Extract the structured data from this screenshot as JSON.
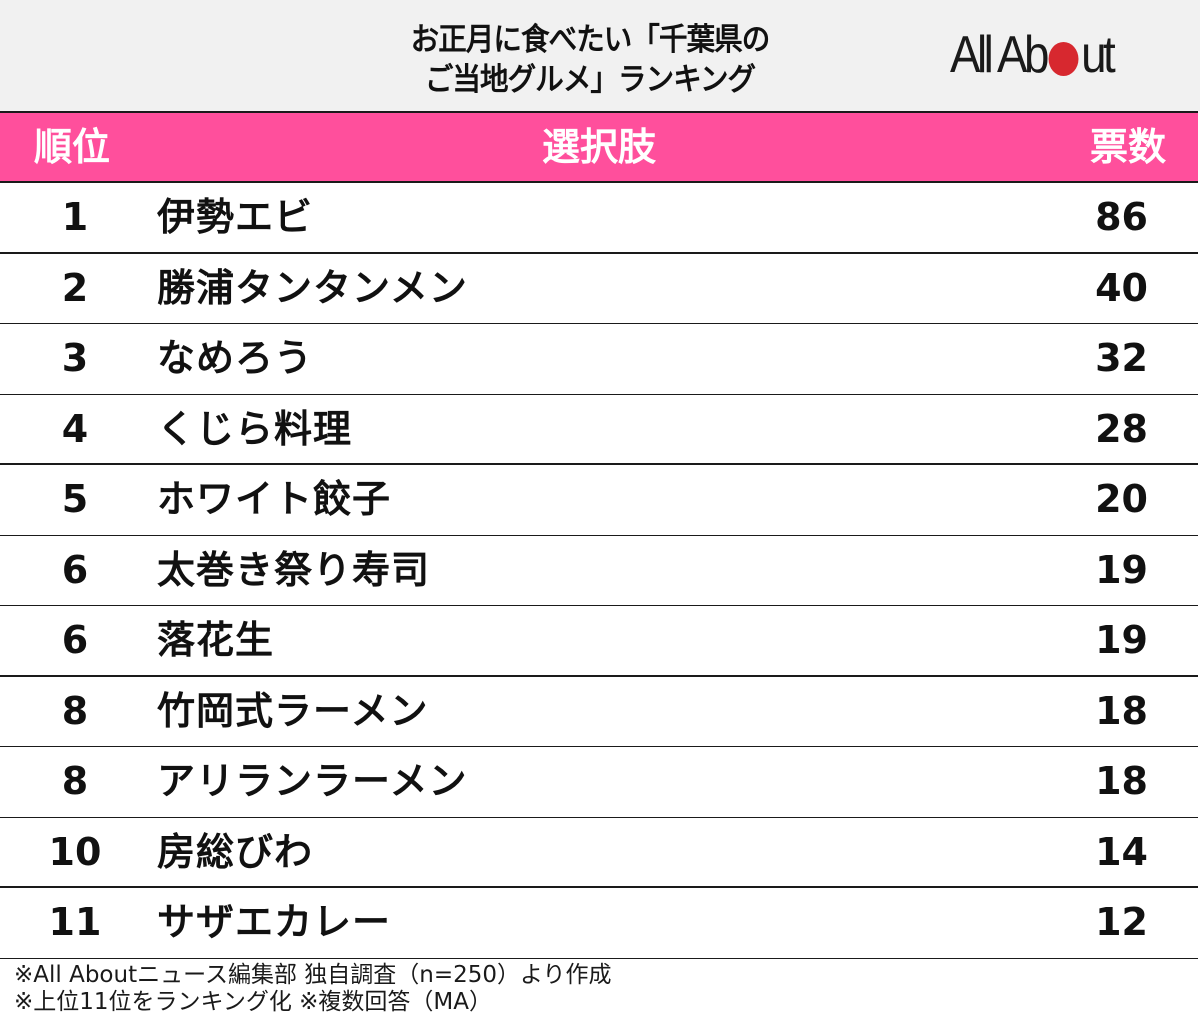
{
  "title": {
    "line1": "お正月に食べたい「千葉県の",
    "line2": "ご当地グルメ」ランキング"
  },
  "logo": {
    "text_before": "All Ab",
    "text_after": "ut",
    "dot_color": "#d7282f"
  },
  "colors": {
    "header_bg": "#ff4f9c",
    "title_bg": "#f1f1f1",
    "text": "#111111"
  },
  "table": {
    "headers": {
      "rank": "順位",
      "choice": "選択肢",
      "votes": "票数"
    },
    "rows": [
      {
        "rank": "1",
        "name": "伊勢エビ",
        "votes": "86"
      },
      {
        "rank": "2",
        "name": "勝浦タンタンメン",
        "votes": "40"
      },
      {
        "rank": "3",
        "name": "なめろう",
        "votes": "32"
      },
      {
        "rank": "4",
        "name": "くじら料理",
        "votes": "28"
      },
      {
        "rank": "5",
        "name": "ホワイト餃子",
        "votes": "20"
      },
      {
        "rank": "6",
        "name": "太巻き祭り寿司",
        "votes": "19"
      },
      {
        "rank": "6",
        "name": "落花生",
        "votes": "19"
      },
      {
        "rank": "8",
        "name": "竹岡式ラーメン",
        "votes": "18"
      },
      {
        "rank": "8",
        "name": "アリランラーメン",
        "votes": "18"
      },
      {
        "rank": "10",
        "name": "房総びわ",
        "votes": "14"
      },
      {
        "rank": "11",
        "name": "サザエカレー",
        "votes": "12"
      }
    ]
  },
  "notes": {
    "line1": "※All Aboutニュース編集部 独自調査（n=250）より作成",
    "line2": "※上位11位をランキング化 ※複数回答（MA）"
  },
  "chart_data": {
    "type": "table",
    "title": "お正月に食べたい「千葉県のご当地グルメ」ランキング",
    "columns": [
      "順位",
      "選択肢",
      "票数"
    ],
    "categories": [
      "伊勢エビ",
      "勝浦タンタンメン",
      "なめろう",
      "くじら料理",
      "ホワイト餃子",
      "太巻き祭り寿司",
      "落花生",
      "竹岡式ラーメン",
      "アリランラーメン",
      "房総びわ",
      "サザエカレー"
    ],
    "ranks": [
      1,
      2,
      3,
      4,
      5,
      6,
      6,
      8,
      8,
      10,
      11
    ],
    "values": [
      86,
      40,
      32,
      28,
      20,
      19,
      19,
      18,
      18,
      14,
      12
    ],
    "annotations": [
      "※All Aboutニュース編集部 独自調査（n=250）より作成",
      "※上位11位をランキング化 ※複数回答（MA）"
    ]
  }
}
